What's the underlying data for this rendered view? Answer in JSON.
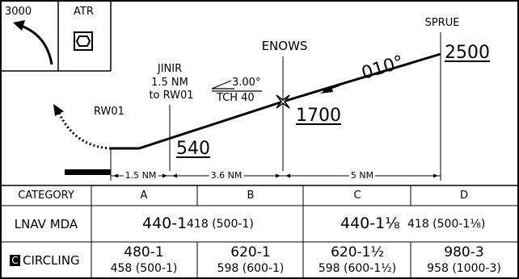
{
  "briefing": {
    "msa_altitude": "3000",
    "atr_label": "ATR"
  },
  "fixes": {
    "jinir": {
      "name": "JINIR",
      "dist": "1.5 NM",
      "to": "to RW01"
    },
    "enows": {
      "name": "ENOWS",
      "altitude": "1700"
    },
    "sprue": {
      "name": "SPRUE",
      "altitude": "2500"
    },
    "runway": {
      "name": "RW01"
    },
    "fap_altitude": "540"
  },
  "glidepath": {
    "angle": "3.00°",
    "tch": "TCH 40"
  },
  "course": "010°",
  "segments": {
    "seg1": "1.5 NM",
    "seg2": "3.6 NM",
    "seg3": "5 NM"
  },
  "minima": {
    "header": {
      "category": "CATEGORY",
      "a": "A",
      "b": "B",
      "c": "C",
      "d": "D"
    },
    "lnav": {
      "label": "LNAV MDA",
      "ab_top": "440-1",
      "ab_bot": "418 (500-1)",
      "cd_top": "440-1⅛",
      "cd_bot": "418 (500-1⅛)"
    },
    "circling": {
      "icon_letter": "C",
      "label": "CIRCLING",
      "a_top": "480-1",
      "a_bot": "458 (500-1)",
      "b_top": "620-1",
      "b_bot": "598 (600-1)",
      "c_top": "620-1½",
      "c_bot": "598 (600-1½)",
      "d_top": "980-3",
      "d_bot": "958 (1000-3)"
    }
  }
}
